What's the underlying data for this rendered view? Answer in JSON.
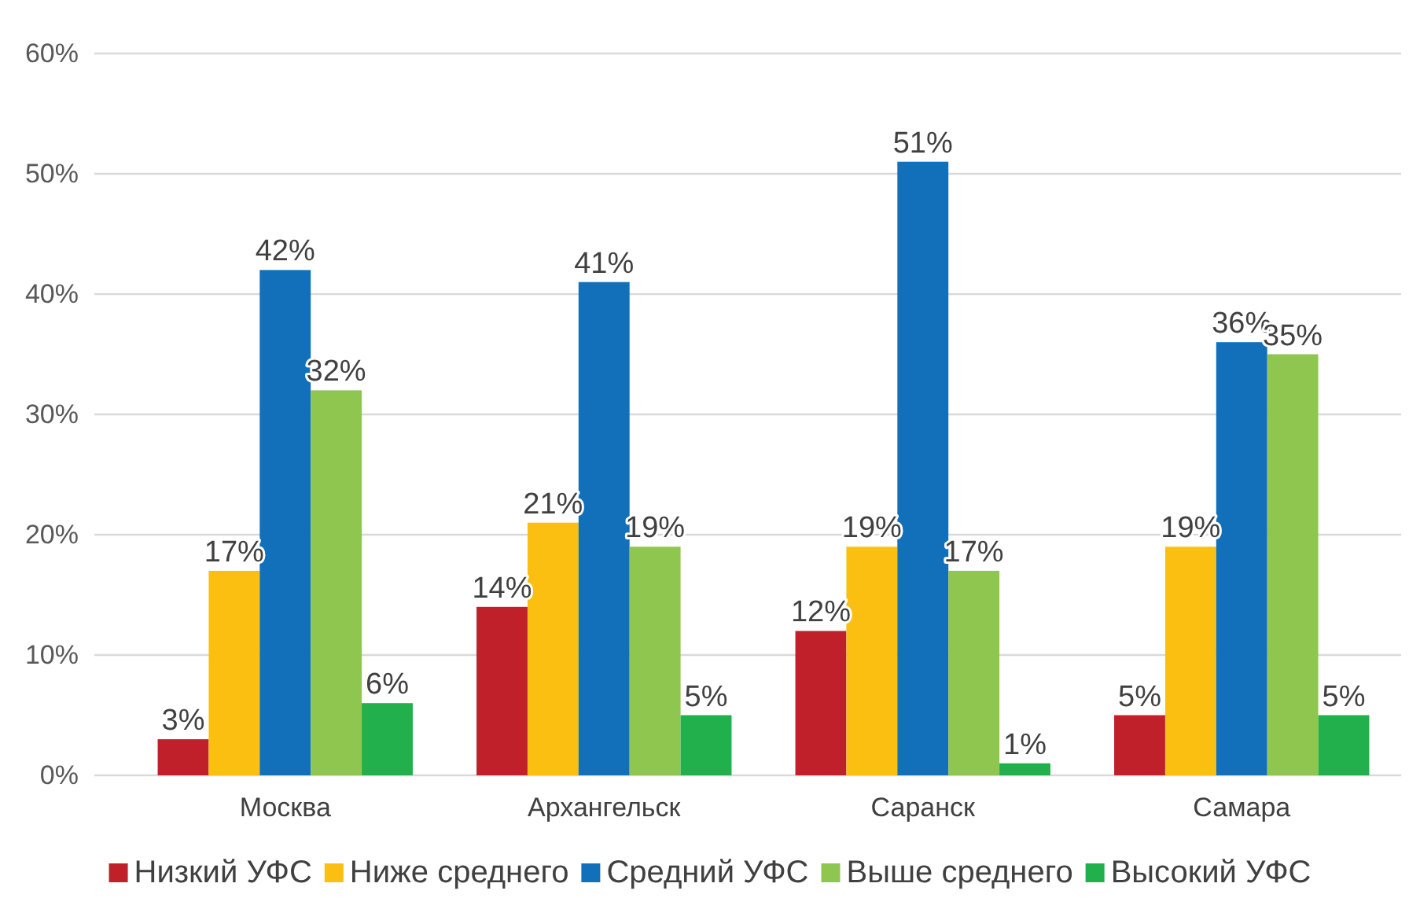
{
  "chart_data": {
    "type": "bar",
    "categories": [
      "Москва",
      "Архангельск",
      "Саранск",
      "Самара"
    ],
    "series": [
      {
        "name": "Низкий УФС",
        "color": "#c0202a",
        "values": [
          3,
          14,
          12,
          5
        ],
        "value_labels": [
          "3%",
          "14%",
          "12%",
          "5%"
        ]
      },
      {
        "name": "Ниже среднего",
        "color": "#fbbf12",
        "values": [
          17,
          21,
          19,
          19
        ],
        "value_labels": [
          "17%",
          "21%",
          "19%",
          "19%"
        ]
      },
      {
        "name": "Средний УФС",
        "color": "#1170b9",
        "values": [
          42,
          41,
          51,
          36
        ],
        "value_labels": [
          "42%",
          "41%",
          "51%",
          "36%"
        ]
      },
      {
        "name": "Выше среднего",
        "color": "#8ec650",
        "values": [
          32,
          19,
          17,
          35
        ],
        "value_labels": [
          "32%",
          "19%",
          "17%",
          "35%"
        ]
      },
      {
        "name": "Высокий УФС",
        "color": "#22b04c",
        "values": [
          6,
          5,
          1,
          5
        ],
        "value_labels": [
          "6%",
          "5%",
          "1%",
          "5%"
        ]
      }
    ],
    "ylim": [
      0,
      60
    ],
    "yticks": [
      {
        "value": 0,
        "label": "0%"
      },
      {
        "value": 10,
        "label": "10%"
      },
      {
        "value": 20,
        "label": "20%"
      },
      {
        "value": 30,
        "label": "30%"
      },
      {
        "value": 40,
        "label": "40%"
      },
      {
        "value": 50,
        "label": "50%"
      },
      {
        "value": 60,
        "label": "60%"
      }
    ],
    "grid": true,
    "legend": "bottom"
  }
}
